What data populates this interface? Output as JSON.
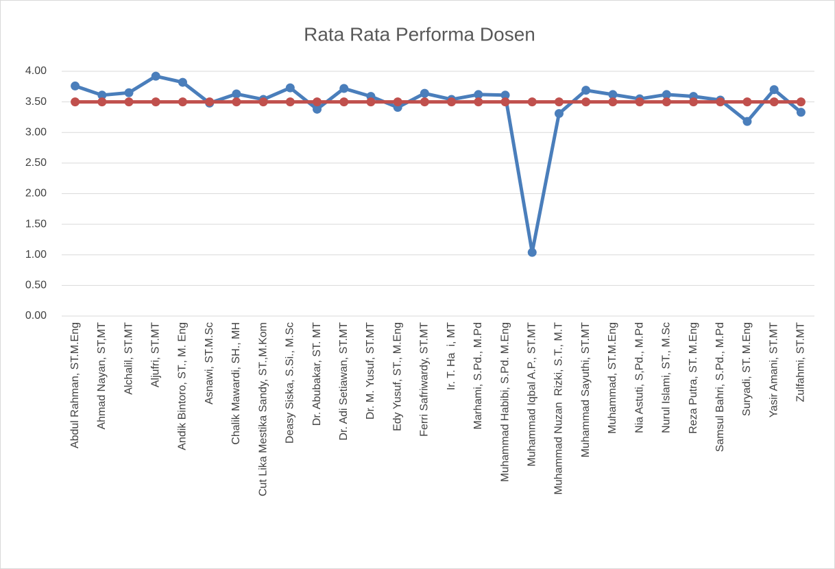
{
  "chart_data": {
    "type": "line",
    "title": "Rata Rata Performa Dosen",
    "categories": [
      "Abdul Rahman, ST.M.Eng",
      "Ahmad Nayan, ST,MT",
      "Alchalil, ST.MT",
      "Aljufri, ST.MT",
      "Andik Bintoro, ST., M. Eng",
      "Asnawi, ST.M.Sc",
      "Chalik Mawardi, SH., MH",
      "Cut Lika Mestika Sandy, ST.,M.Kom",
      "Deasy Siska, S.Si., M.Sc",
      "Dr. Abubakar, ST. MT",
      "Dr. Adi Setiawan, ST.MT",
      "Dr. M. Yusuf, ST.MT",
      "Edy Yusuf, ST., M.Eng",
      "Ferri Safriwardy, ST.MT",
      "Ir. T. Ha  i, MT",
      "Marhami, S.Pd., M.Pd",
      "Muhammad Habibi, S.Pd. M.Eng",
      "Muhammad Iqbal A.P., ST.MT",
      "Muhammad Nuzan  Rizki, S.T., M.T",
      "Muhammad Sayuthi, ST.MT",
      "Muhammad, ST.M.Eng",
      "Nia Astuti, S,Pd., M.Pd",
      "Nurul Islami, ST., M.Sc",
      "Reza Putra, ST. M.Eng",
      "Samsul Bahri, S.Pd., M.Pd",
      "Suryadi, ST. M.Eng",
      "Yasir Amani, ST.MT",
      "Zulfahmi, ST.MT"
    ],
    "series": [
      {
        "color": "#4a7ebb",
        "values": [
          3.76,
          3.61,
          3.65,
          3.92,
          3.82,
          3.48,
          3.63,
          3.54,
          3.73,
          3.38,
          3.72,
          3.59,
          3.41,
          3.64,
          3.54,
          3.62,
          3.61,
          1.04,
          3.31,
          3.69,
          3.62,
          3.55,
          3.62,
          3.59,
          3.53,
          3.18,
          3.7,
          3.33
        ]
      },
      {
        "color": "#c0504d",
        "values": [
          3.5,
          3.5,
          3.5,
          3.5,
          3.5,
          3.5,
          3.5,
          3.5,
          3.5,
          3.5,
          3.5,
          3.5,
          3.5,
          3.5,
          3.5,
          3.5,
          3.5,
          3.5,
          3.5,
          3.5,
          3.5,
          3.5,
          3.5,
          3.5,
          3.5,
          3.5,
          3.5,
          3.5
        ]
      }
    ],
    "ylim": [
      0,
      4
    ],
    "yticks": [
      {
        "value": 0,
        "label": "0.00"
      },
      {
        "value": 0.5,
        "label": "0.50"
      },
      {
        "value": 1,
        "label": "1.00"
      },
      {
        "value": 1.5,
        "label": "1.50"
      },
      {
        "value": 2,
        "label": "2.00"
      },
      {
        "value": 2.5,
        "label": "2.50"
      },
      {
        "value": 3,
        "label": "3.00"
      },
      {
        "value": 3.5,
        "label": "3.50"
      },
      {
        "value": 4,
        "label": "4.00"
      }
    ],
    "grid": true
  }
}
